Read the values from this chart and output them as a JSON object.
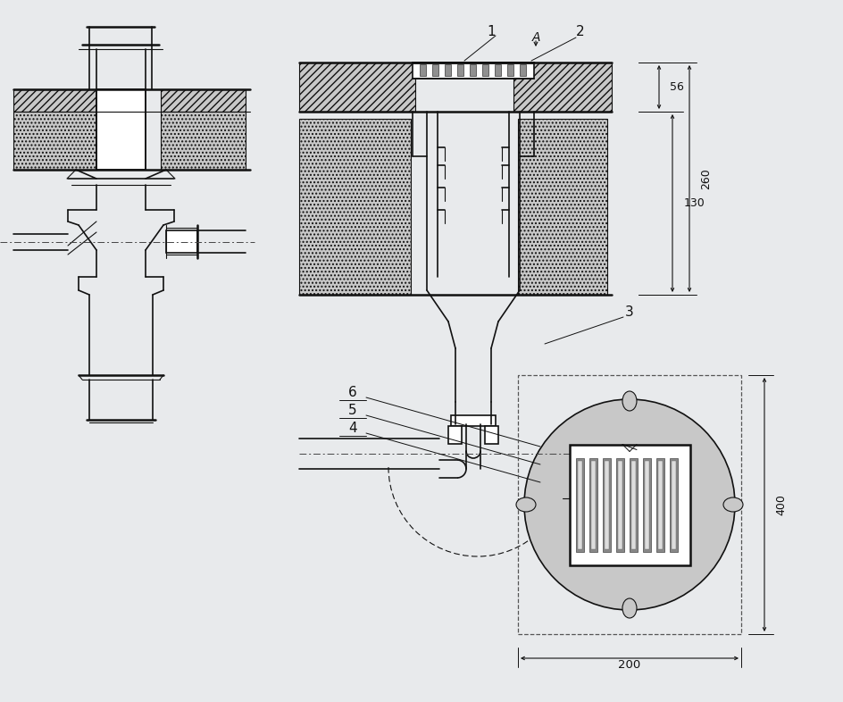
{
  "bg_color": "#e8eaec",
  "line_color": "#111111",
  "hatch_fc": "#c8c8c8",
  "white": "#ffffff",
  "gray_medium": "#909090",
  "gray_light": "#cccccc"
}
